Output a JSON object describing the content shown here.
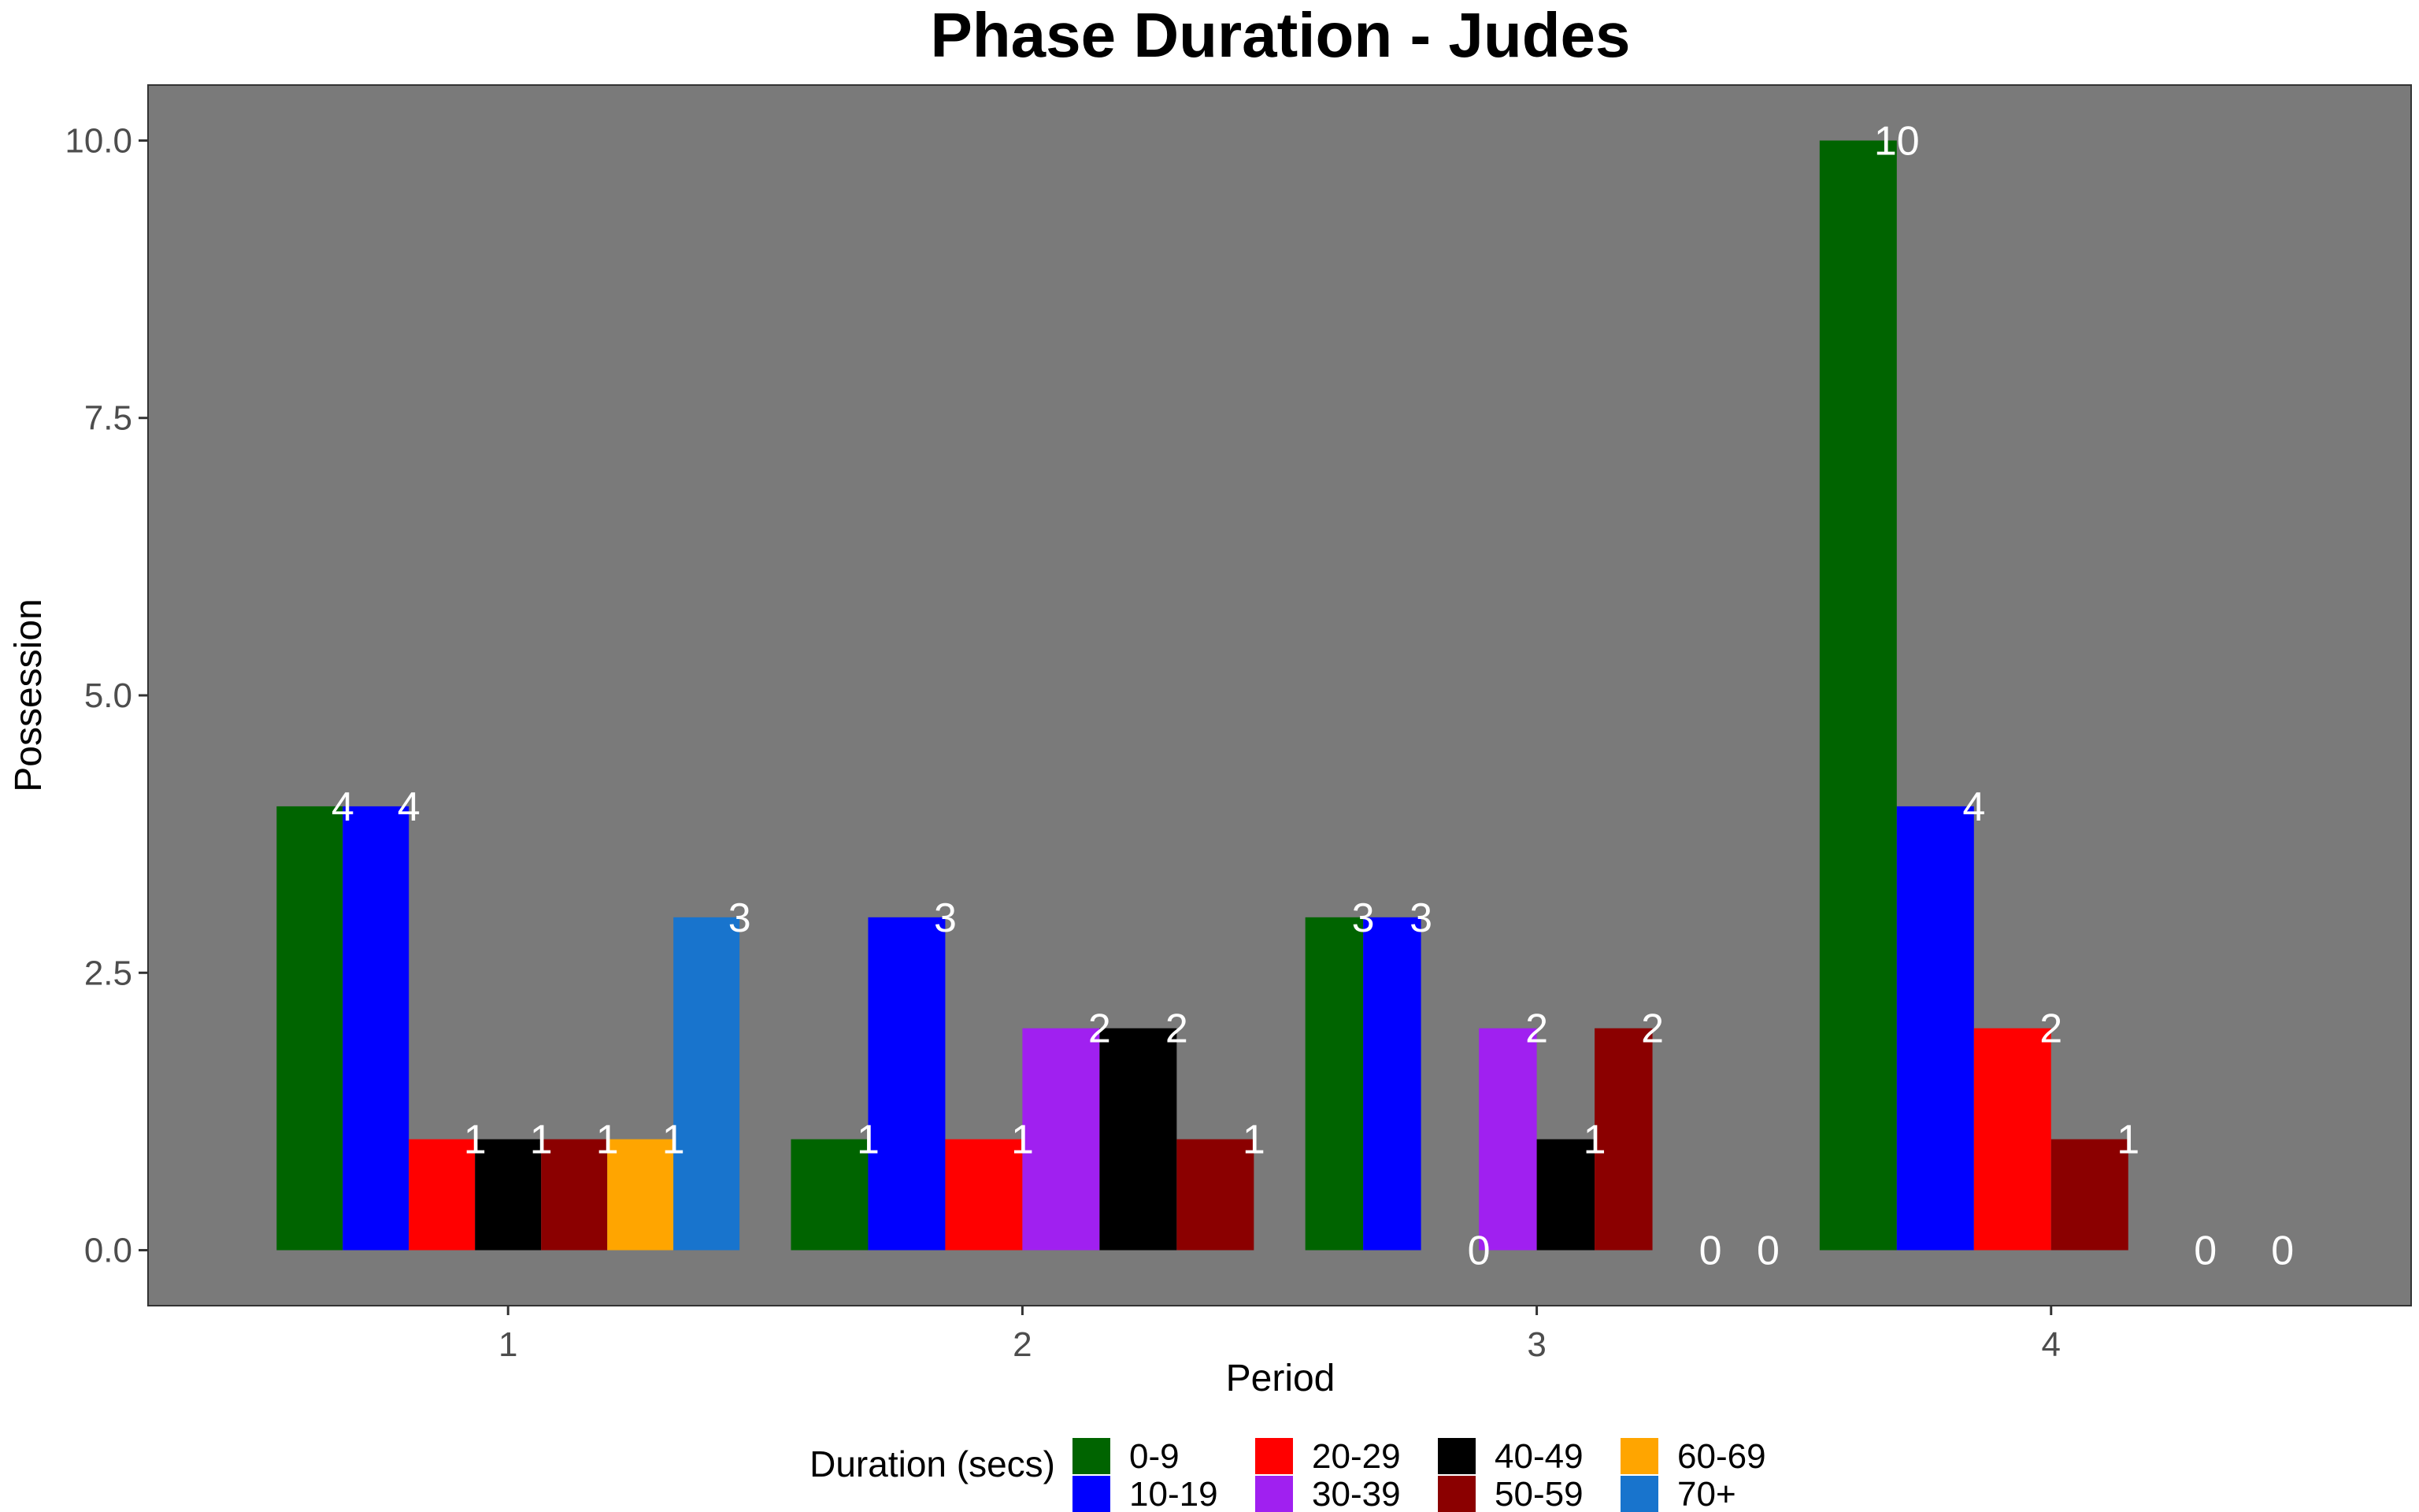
{
  "chart_data": {
    "type": "bar",
    "title": "Phase Duration - Judes",
    "xlabel": "Period",
    "ylabel": "Possession",
    "ylim": [
      -0.5,
      10.5
    ],
    "yticks": [
      "0.0",
      "2.5",
      "5.0",
      "7.5",
      "10.0"
    ],
    "ytick_values": [
      0,
      2.5,
      5,
      7.5,
      10
    ],
    "categories": [
      "1",
      "2",
      "3",
      "4"
    ],
    "legend_title": "Duration (secs)",
    "legend_position": "bottom",
    "grid": false,
    "panel_background": "#7a7a7a",
    "series": [
      {
        "name": "0-9",
        "color": "#006400"
      },
      {
        "name": "10-19",
        "color": "#0000ff"
      },
      {
        "name": "20-29",
        "color": "#ff0000"
      },
      {
        "name": "30-39",
        "color": "#a020f0"
      },
      {
        "name": "40-49",
        "color": "#000000"
      },
      {
        "name": "50-59",
        "color": "#8b0000"
      },
      {
        "name": "60-69",
        "color": "#ffa500"
      },
      {
        "name": "70+",
        "color": "#1874cd"
      }
    ],
    "groups": [
      {
        "category": "1",
        "bars": [
          {
            "series": "0-9",
            "value": 4,
            "label": "4"
          },
          {
            "series": "10-19",
            "value": 4,
            "label": "4"
          },
          {
            "series": "20-29",
            "value": 1,
            "label": "1"
          },
          {
            "series": "40-49",
            "value": 1,
            "label": "1"
          },
          {
            "series": "50-59",
            "value": 1,
            "label": "1"
          },
          {
            "series": "60-69",
            "value": 1,
            "label": "1"
          },
          {
            "series": "70+",
            "value": 3,
            "label": "3"
          }
        ]
      },
      {
        "category": "2",
        "bars": [
          {
            "series": "0-9",
            "value": 1,
            "label": "1"
          },
          {
            "series": "10-19",
            "value": 3,
            "label": "3"
          },
          {
            "series": "20-29",
            "value": 1,
            "label": "1"
          },
          {
            "series": "30-39",
            "value": 2,
            "label": "2"
          },
          {
            "series": "40-49",
            "value": 2,
            "label": "2"
          },
          {
            "series": "50-59",
            "value": 1,
            "label": "1"
          }
        ]
      },
      {
        "category": "3",
        "bars": [
          {
            "series": "0-9",
            "value": 3,
            "label": "3"
          },
          {
            "series": "10-19",
            "value": 3,
            "label": "3"
          },
          {
            "series": "20-29",
            "value": 0,
            "label": "0"
          },
          {
            "series": "30-39",
            "value": 2,
            "label": "2"
          },
          {
            "series": "40-49",
            "value": 1,
            "label": "1"
          },
          {
            "series": "50-59",
            "value": 2,
            "label": "2"
          },
          {
            "series": "60-69",
            "value": 0,
            "label": "0"
          },
          {
            "series": "70+",
            "value": 0,
            "label": "0"
          }
        ]
      },
      {
        "category": "4",
        "bars": [
          {
            "series": "0-9",
            "value": 10,
            "label": "10"
          },
          {
            "series": "10-19",
            "value": 4,
            "label": "4"
          },
          {
            "series": "20-29",
            "value": 2,
            "label": "2"
          },
          {
            "series": "50-59",
            "value": 1,
            "label": "1"
          },
          {
            "series": "60-69",
            "value": 0,
            "label": "0"
          },
          {
            "series": "70+",
            "value": 0,
            "label": "0"
          }
        ]
      }
    ]
  }
}
